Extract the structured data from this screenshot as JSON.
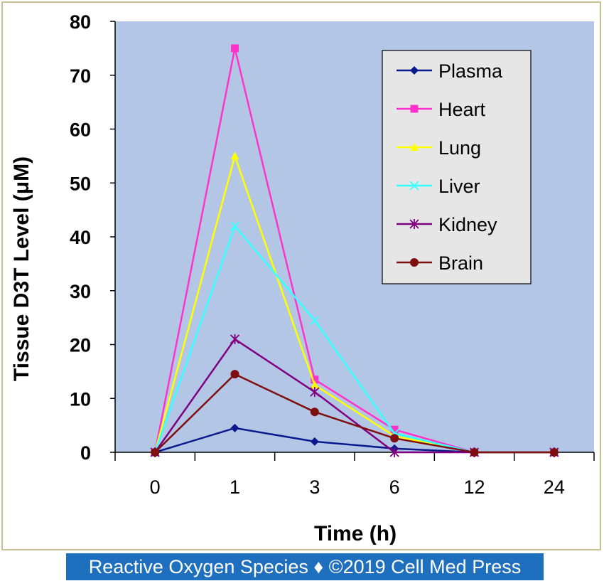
{
  "chart_data": {
    "type": "line",
    "title": "",
    "xlabel": "Time (h)",
    "ylabel": "Tissue D3T Level (μM)",
    "categories": [
      "0",
      "1",
      "3",
      "6",
      "12",
      "24"
    ],
    "ylim": [
      0,
      80
    ],
    "yticks": [
      "0",
      "10",
      "20",
      "30",
      "40",
      "50",
      "60",
      "70",
      "80"
    ],
    "grid": false,
    "legend_position": "top-right",
    "plot_background": "#b3c6e6",
    "series": [
      {
        "name": "Plasma",
        "color": "#0a1a8c",
        "marker": "diamond",
        "values": [
          0,
          4.5,
          2,
          0.7,
          0,
          0
        ]
      },
      {
        "name": "Heart",
        "color": "#ff33cc",
        "marker": "square",
        "values": [
          0,
          75,
          13.5,
          4.2,
          0,
          0
        ]
      },
      {
        "name": "Lung",
        "color": "#ffff00",
        "marker": "triangle",
        "values": [
          0,
          55,
          12.5,
          3,
          0,
          0
        ]
      },
      {
        "name": "Liver",
        "color": "#33ffff",
        "marker": "x",
        "values": [
          0,
          42,
          24.5,
          3.5,
          0,
          0
        ]
      },
      {
        "name": "Kidney",
        "color": "#800080",
        "marker": "star",
        "values": [
          0,
          21,
          11.2,
          0,
          0,
          0
        ]
      },
      {
        "name": "Brain",
        "color": "#7f0f0f",
        "marker": "circle",
        "values": [
          0,
          14.5,
          7.5,
          2.6,
          0,
          0
        ]
      }
    ]
  },
  "footer": {
    "text": "Reactive Oxygen Species ♦ ©2019 Cell Med Press",
    "background": "#1f6fbf"
  }
}
